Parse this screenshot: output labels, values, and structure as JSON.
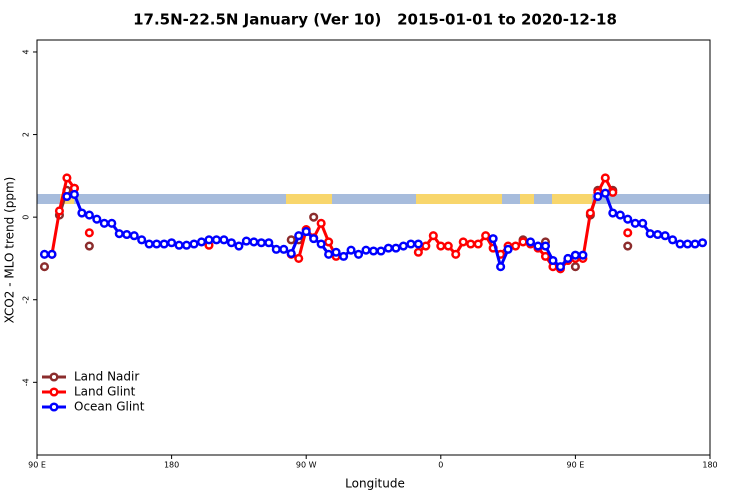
{
  "chart_data": {
    "type": "line",
    "title": "17.5N-22.5N January (Ver 10)   2015-01-01 to 2020-12-18",
    "x_label": "Longitude",
    "y_label": "XCO2 - MLO trend (ppm)",
    "xlim": [
      90,
      540
    ],
    "ylim": [
      -5.76,
      4.29
    ],
    "xticks": [
      {
        "value": 90,
        "label": "90 E"
      },
      180,
      {
        "value": 270,
        "label": "90 W"
      },
      {
        "value": 360,
        "label": "0"
      },
      {
        "value": 450,
        "label": "90 E"
      },
      {
        "value": 540,
        "label": "180"
      }
    ],
    "yticks": [
      -4,
      -2,
      0,
      2,
      4
    ],
    "legend": "bottom left",
    "x": [
      95,
      100,
      105,
      110,
      115,
      120,
      125,
      130,
      135,
      140,
      145,
      150,
      155,
      160,
      165,
      170,
      175,
      180,
      185,
      190,
      195,
      200,
      205,
      210,
      215,
      220,
      225,
      230,
      235,
      240,
      245,
      250,
      255,
      260,
      265,
      270,
      275,
      280,
      285,
      290,
      295,
      300,
      305,
      310,
      315,
      320,
      325,
      330,
      335,
      340,
      345,
      350,
      355,
      360,
      365,
      370,
      375,
      380,
      385,
      390,
      395,
      400,
      405,
      410,
      415,
      420,
      425,
      430,
      435,
      440,
      445,
      450,
      455,
      460,
      465,
      470,
      475,
      480,
      485,
      490,
      495,
      500,
      505,
      510,
      515,
      520,
      525,
      530,
      535
    ],
    "series": [
      {
        "name": "Land Nadir",
        "color": "#8b2c2c",
        "values": [
          -1.2,
          null,
          0.05,
          0.65,
          0.7,
          null,
          -0.7,
          null,
          null,
          null,
          null,
          null,
          null,
          null,
          null,
          null,
          null,
          null,
          null,
          null,
          null,
          null,
          null,
          null,
          null,
          null,
          null,
          null,
          null,
          null,
          null,
          null,
          null,
          -0.55,
          -0.55,
          null,
          0.0,
          null,
          -0.6,
          null,
          null,
          null,
          null,
          null,
          null,
          null,
          null,
          null,
          null,
          null,
          null,
          null,
          null,
          null,
          null,
          null,
          null,
          null,
          null,
          null,
          null,
          null,
          null,
          null,
          -0.55,
          null,
          null,
          -0.6,
          null,
          null,
          null,
          -1.2,
          null,
          0.05,
          0.65,
          null,
          0.65,
          null,
          -0.7,
          null,
          null,
          null,
          null,
          null,
          null,
          null,
          null,
          null,
          null
        ]
      },
      {
        "name": "Land Glint",
        "color": "#ff0000",
        "values": [
          null,
          -0.9,
          0.15,
          0.95,
          0.7,
          null,
          -0.38,
          null,
          null,
          null,
          null,
          null,
          null,
          null,
          null,
          null,
          null,
          null,
          null,
          null,
          null,
          null,
          -0.68,
          null,
          null,
          null,
          null,
          null,
          null,
          null,
          null,
          null,
          null,
          -0.9,
          -1.0,
          -0.3,
          -0.5,
          -0.15,
          -0.6,
          -0.95,
          null,
          null,
          null,
          null,
          null,
          null,
          null,
          null,
          null,
          null,
          -0.85,
          -0.7,
          -0.45,
          -0.7,
          -0.7,
          -0.9,
          -0.6,
          -0.65,
          -0.65,
          -0.45,
          -0.75,
          -0.9,
          -0.7,
          -0.7,
          -0.6,
          -0.65,
          -0.75,
          -0.95,
          -1.2,
          -1.25,
          -1.05,
          -1.0,
          -1.0,
          0.1,
          0.6,
          0.95,
          0.6,
          null,
          -0.38,
          null,
          null,
          null,
          null,
          null,
          null,
          null,
          null,
          null,
          null
        ]
      },
      {
        "name": "Ocean Glint",
        "color": "#0000ff",
        "values": [
          -0.9,
          -0.9,
          null,
          0.5,
          0.55,
          0.1,
          0.05,
          -0.05,
          -0.15,
          -0.15,
          -0.4,
          -0.42,
          -0.45,
          -0.55,
          -0.65,
          -0.65,
          -0.65,
          -0.62,
          -0.68,
          -0.68,
          -0.65,
          -0.6,
          -0.55,
          -0.55,
          -0.55,
          -0.62,
          -0.7,
          -0.58,
          -0.6,
          -0.62,
          -0.62,
          -0.78,
          -0.78,
          -0.88,
          -0.45,
          -0.35,
          -0.52,
          -0.65,
          -0.9,
          -0.85,
          -0.95,
          -0.8,
          -0.9,
          -0.8,
          -0.82,
          -0.82,
          -0.75,
          -0.75,
          -0.7,
          -0.65,
          -0.65,
          null,
          null,
          null,
          null,
          null,
          null,
          null,
          null,
          null,
          -0.52,
          -1.2,
          -0.78,
          null,
          null,
          -0.6,
          -0.7,
          -0.7,
          -1.05,
          -1.2,
          -1.0,
          -0.92,
          -0.92,
          null,
          0.5,
          0.58,
          0.1,
          0.05,
          -0.05,
          -0.15,
          -0.15,
          -0.4,
          -0.42,
          -0.45,
          -0.55,
          -0.65,
          -0.65,
          -0.65,
          -0.62
        ]
      }
    ]
  }
}
